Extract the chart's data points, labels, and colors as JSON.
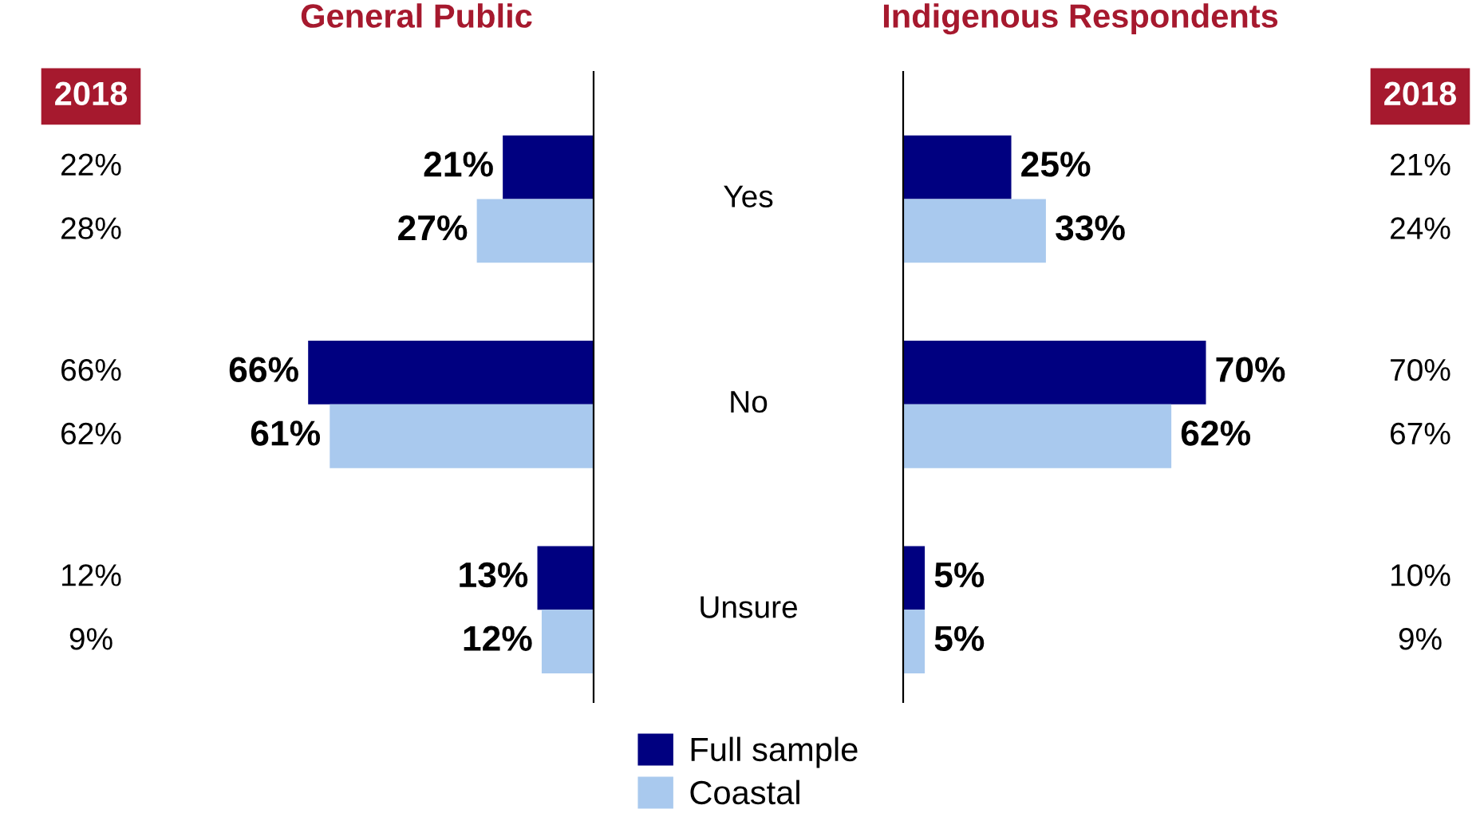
{
  "chart_data": [
    {
      "type": "bar",
      "orientation": "horizontal",
      "title": "General Public",
      "categories": [
        "Yes",
        "No",
        "Unsure"
      ],
      "legend": "bottom",
      "series": [
        {
          "name": "Full sample",
          "color": "#000080",
          "values": [
            21,
            66,
            13
          ],
          "value_labels": [
            "21%",
            "66%",
            "13%"
          ]
        },
        {
          "name": "Coastal",
          "color": "#a9c9ee",
          "values": [
            27,
            61,
            12
          ],
          "value_labels": [
            "27%",
            "61%",
            "12%"
          ]
        }
      ],
      "annotations": [
        "2018",
        "22%",
        "28%",
        "66%",
        "62%",
        "12%",
        "9%"
      ]
    },
    {
      "type": "bar",
      "orientation": "horizontal",
      "title": "Indigenous Respondents",
      "categories": [
        null,
        null,
        null
      ],
      "series": [
        {
          "color": "#000080",
          "values": [
            25,
            70,
            5
          ],
          "value_labels": [
            "25%",
            "70%",
            "5%"
          ]
        },
        {
          "color": "#a9c9ee",
          "values": [
            33,
            62,
            5
          ],
          "value_labels": [
            "33%",
            "62%",
            "5%"
          ]
        }
      ],
      "annotations": [
        "2018",
        "21%",
        "24%",
        "70%",
        "67%",
        "10%",
        "9%"
      ]
    }
  ]
}
